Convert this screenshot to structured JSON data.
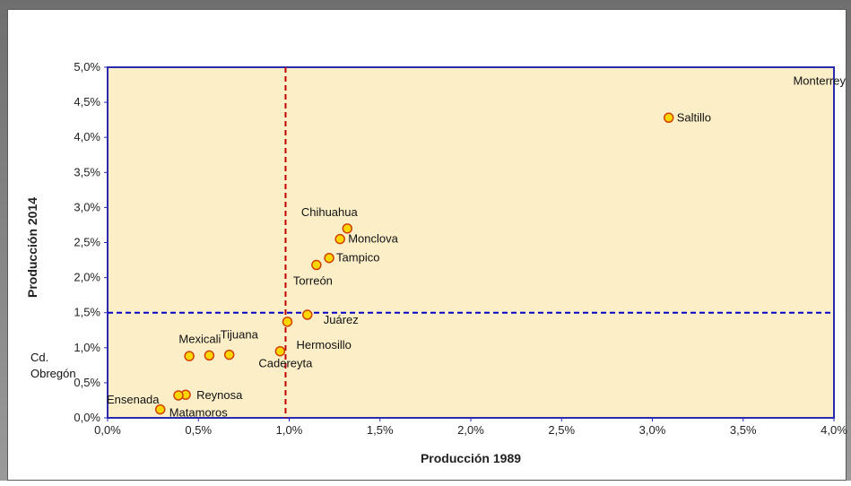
{
  "chart_data": {
    "type": "scatter",
    "title": "",
    "xlabel": "Producción 1989",
    "ylabel": "Producción 2014",
    "xlim": [
      0,
      4.0
    ],
    "ylim": [
      0,
      5.0
    ],
    "x_ticks": [
      "0,0%",
      "0,5%",
      "1,0%",
      "1,5%",
      "2,0%",
      "2,5%",
      "3,0%",
      "3,5%",
      "4,0%"
    ],
    "y_ticks": [
      "0,0%",
      "0,5%",
      "1,0%",
      "1,5%",
      "2,0%",
      "2,5%",
      "3,0%",
      "3,5%",
      "4,0%",
      "4,5%",
      "5,0%"
    ],
    "grid": false,
    "reference_lines": [
      {
        "axis": "x",
        "value": 0.98,
        "style": "dashed",
        "color": "#c00000"
      },
      {
        "axis": "y",
        "value": 1.5,
        "style": "dashed",
        "color": "#0000c8"
      }
    ],
    "points": [
      {
        "label": "Saltillo",
        "x": 3.09,
        "y": 4.28
      },
      {
        "label": "Chihuahua",
        "x": 1.32,
        "y": 2.7
      },
      {
        "label": "Monclova",
        "x": 1.28,
        "y": 2.55
      },
      {
        "label": "Tampico",
        "x": 1.22,
        "y": 2.28
      },
      {
        "label": "Torreón",
        "x": 1.15,
        "y": 2.18
      },
      {
        "label": "Juárez",
        "x": 1.1,
        "y": 1.47
      },
      {
        "label": "Hermosillo",
        "x": 0.99,
        "y": 1.37
      },
      {
        "label": "Cadereyta",
        "x": 0.95,
        "y": 0.95
      },
      {
        "label": "Tijuana",
        "x": 0.67,
        "y": 0.9
      },
      {
        "label": "Mexicali",
        "x": 0.56,
        "y": 0.89
      },
      {
        "label": "Cd. Obregón",
        "x": 0.45,
        "y": 0.88
      },
      {
        "label": "Reynosa",
        "x": 0.43,
        "y": 0.33
      },
      {
        "label": "Ensenada",
        "x": 0.39,
        "y": 0.32
      },
      {
        "label": "Matamoros",
        "x": 0.29,
        "y": 0.12
      },
      {
        "label": "Monterrey",
        "x": null,
        "y": null
      }
    ],
    "colors": {
      "plot_bg": "#fcefc8",
      "axis_frame": "#2a2ab0",
      "marker_fill": "#ffd700",
      "marker_edge": "#d04000"
    }
  }
}
